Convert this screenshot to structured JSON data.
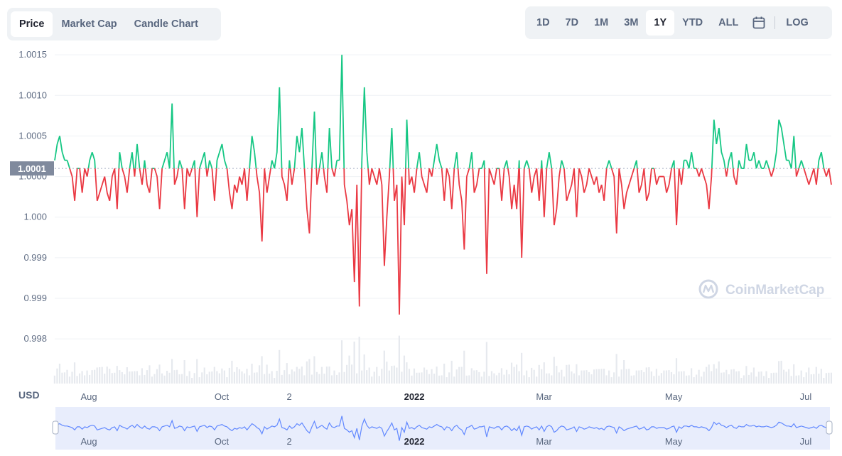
{
  "tabs": [
    "Price",
    "Market Cap",
    "Candle Chart"
  ],
  "active_tab": "Price",
  "ranges": [
    "1D",
    "7D",
    "1M",
    "3M",
    "1Y",
    "YTD",
    "ALL"
  ],
  "active_range": "1Y",
  "log_label": "LOG",
  "currency_label": "USD",
  "current_price_badge": "1.0001",
  "watermark": "CoinMarketCap",
  "colors": {
    "up": "#16c784",
    "down": "#ea3943",
    "navigator": "#6188ff",
    "badge": "#808a9d"
  },
  "chart_data": {
    "type": "line",
    "baseline": 1.0001,
    "y_ticks": [
      {
        "label": "1.0015",
        "value": 1.0015
      },
      {
        "label": "1.0010",
        "value": 1.001
      },
      {
        "label": "1.0005",
        "value": 1.0005
      },
      {
        "label": "1.0000",
        "value": 1.0
      },
      {
        "label": "1.000",
        "value": 0.9995
      },
      {
        "label": "0.999",
        "value": 0.999
      },
      {
        "label": "0.999",
        "value": 0.9985
      },
      {
        "label": "0.998",
        "value": 0.998
      }
    ],
    "ylim": [
      0.9978,
      1.00165
    ],
    "x_ticks": [
      {
        "label": "Aug",
        "t": 0.044,
        "bold": false
      },
      {
        "label": "Oct",
        "t": 0.215,
        "bold": false
      },
      {
        "label": "2",
        "t": 0.302,
        "bold": false
      },
      {
        "label": "2022",
        "t": 0.463,
        "bold": true
      },
      {
        "label": "Mar",
        "t": 0.63,
        "bold": false
      },
      {
        "label": "May",
        "t": 0.797,
        "bold": false
      },
      {
        "label": "Jul",
        "t": 0.967,
        "bold": false
      }
    ],
    "series": [
      {
        "values": [
          1.0002,
          1.0004,
          1.0005,
          1.0003,
          1.0002,
          1.0002,
          1.0001,
          1.0,
          0.9997,
          1.0001,
          1.0001,
          0.9998,
          1.0001,
          1.0,
          1.0002,
          1.0003,
          1.0002,
          0.9997,
          0.9998,
          0.9999,
          1.0,
          0.9998,
          0.9997,
          1.0,
          1.0001,
          0.9996,
          1.0003,
          1.0001,
          1.0,
          0.9998,
          1.0001,
          1.0003,
          1.0,
          1.0004,
          1.0001,
          0.9999,
          1.0002,
          0.9999,
          0.9998,
          1.0001,
          1.0001,
          1.0,
          0.9996,
          1.0001,
          1.0002,
          1.0003,
          1.0001,
          1.0009,
          0.9999,
          1.0,
          1.0002,
          1.0001,
          0.9996,
          1.0001,
          1.0,
          1.0001,
          1.0002,
          0.9995,
          1.0001,
          1.0002,
          1.0003,
          1.0,
          1.0002,
          1.0001,
          0.9997,
          1.0002,
          1.0003,
          1.0004,
          1.0002,
          1.0001,
          0.9998,
          0.9996,
          0.9999,
          0.9998,
          1.0,
          0.9999,
          1.0001,
          0.9997,
          1.0001,
          1.0005,
          1.0003,
          1.0,
          0.9998,
          0.9992,
          1.0001,
          0.9998,
          1.0,
          1.0002,
          1.0001,
          1.0003,
          1.0011,
          1.0,
          0.9999,
          0.9997,
          1.0002,
          0.9999,
          1.0001,
          1.0005,
          1.0003,
          1.0006,
          1.0001,
          0.9996,
          0.9993,
          1.0001,
          1.0008,
          0.9999,
          1.0001,
          1.0003,
          1.0,
          0.9998,
          1.0006,
          1.0001,
          1.0,
          1.0002,
          1.0002,
          1.0015,
          0.9999,
          0.9997,
          0.9994,
          0.9996,
          0.9987,
          0.9999,
          0.9984,
          1.0002,
          1.0011,
          1.0003,
          0.9999,
          1.0001,
          1.0,
          0.9999,
          1.0001,
          0.9999,
          0.9989,
          0.9995,
          1.0,
          1.0006,
          0.9997,
          0.9999,
          0.9983,
          1.0,
          0.9994,
          1.0007,
          0.9999,
          1.0,
          0.9998,
          1.0001,
          1.0003,
          1.0,
          0.9999,
          0.9998,
          1.0001,
          1.0,
          1.0002,
          1.0004,
          1.0002,
          1.0001,
          0.9997,
          1.0001,
          1.0,
          0.9996,
          1.0001,
          1.0003,
          0.9999,
          0.9997,
          0.9991,
          1.0,
          1.0001,
          1.0003,
          0.9998,
          0.9999,
          1.0001,
          1.0001,
          1.0002,
          0.9988,
          1.0001,
          1.0,
          0.9999,
          1.0001,
          1.0001,
          0.9997,
          1.0001,
          1.0002,
          1.0,
          0.9996,
          0.9999,
          0.9996,
          1.0002,
          0.999,
          1.0001,
          1.0002,
          1.0001,
          0.9998,
          1.0,
          1.0001,
          0.9997,
          1.0002,
          0.9995,
          1.0001,
          1.0003,
          1.0001,
          0.9994,
          0.9996,
          1.0,
          1.0002,
          1.0001,
          0.9997,
          0.9998,
          0.9999,
          1.0001,
          0.9995,
          1.0001,
          1.0,
          0.9998,
          0.9999,
          1.0001,
          1.0,
          0.9999,
          1.0,
          0.9998,
          0.9999,
          0.9997,
          1.0001,
          1.0002,
          1.0001,
          1.0,
          0.9993,
          1.0001,
          0.9999,
          0.9996,
          0.9998,
          0.9999,
          1.0,
          1.0001,
          1.0002,
          0.9998,
          0.9999,
          1.0001,
          0.9997,
          0.9998,
          1.0001,
          1.0001,
          0.9999,
          1.0,
          1.0,
          1.0,
          0.9998,
          0.9999,
          1.0001,
          1.0002,
          0.9994,
          1.0001,
          0.9999,
          1.0002,
          1.0002,
          1.0001,
          1.0003,
          1.0001,
          1.0001,
          1.0,
          1.0001,
          1.0,
          0.9999,
          0.9996,
          1.0,
          1.0007,
          1.0004,
          1.0006,
          1.0003,
          1.0002,
          1.0,
          1.0002,
          1.0003,
          1.0,
          0.9999,
          1.0002,
          1.0001,
          1.0001,
          1.0004,
          1.0002,
          1.0002,
          1.0003,
          1.0001,
          1.0002,
          1.0001,
          1.0001,
          1.0002,
          1.0001,
          1.0,
          1.0001,
          1.0003,
          1.0007,
          1.0006,
          1.0004,
          1.0002,
          1.0002,
          1.0001,
          1.0005,
          1.0,
          1.0001,
          1.0002,
          1.0001,
          1.0,
          0.9999,
          1.0,
          1.0001,
          0.9999,
          1.0002,
          1.0003,
          1.0001,
          1.0,
          1.0001,
          0.9999
        ]
      }
    ],
    "volume_bars": "shown (unlabeled)",
    "navigator": "shown"
  }
}
